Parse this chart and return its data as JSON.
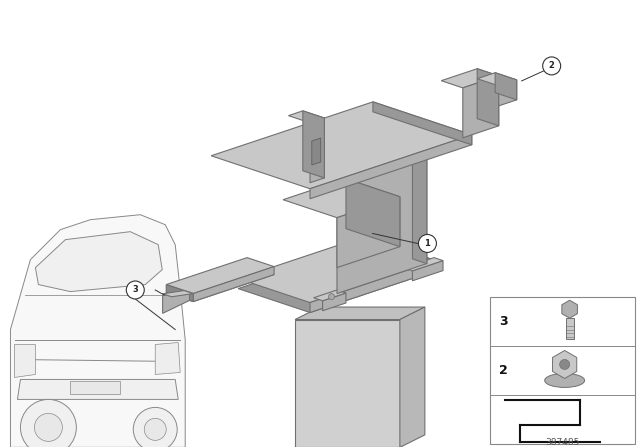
{
  "background_color": "#ffffff",
  "image_number": "387485",
  "part_color_light": "#c8c8c8",
  "part_color_mid": "#b0b0b0",
  "part_color_dark": "#989898",
  "part_color_shadow": "#888888",
  "battery_color_front": "#d0d0d0",
  "battery_color_top": "#c0c0c0",
  "battery_color_right": "#b8b8b8",
  "edge_color": "#707070",
  "car_edge_color": "#888888",
  "text_color": "#222222",
  "label_circle_fill": "#ffffff",
  "label_circle_edge": "#333333"
}
